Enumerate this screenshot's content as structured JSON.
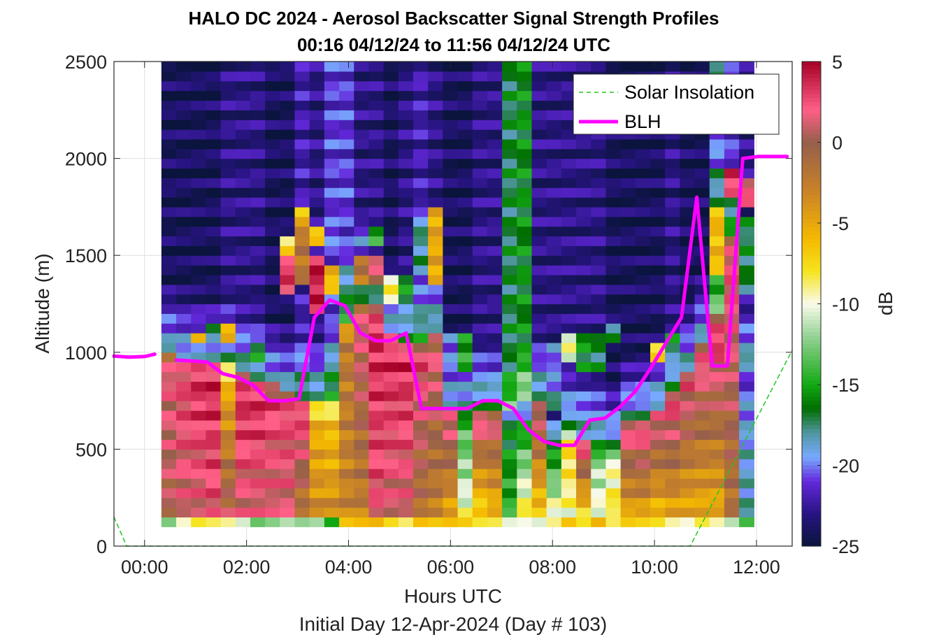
{
  "chart_data": {
    "type": "heatmap",
    "title": "HALO DC 2024 - Aerosol Backscatter Signal Strength Profiles",
    "subtitle": "00:16 04/12/24 to 11:56 04/12/24  UTC",
    "xlabel": "Hours UTC",
    "xlabel2": "Initial Day 12-Apr-2024 (Day # 103)",
    "ylabel": "Altitude (m)",
    "colorbar_label": "dB",
    "xlim": [
      -0.6,
      12.7
    ],
    "ylim": [
      0,
      2500
    ],
    "clim": [
      -25,
      5
    ],
    "x_ticks": [
      0,
      2,
      4,
      6,
      8,
      10,
      12
    ],
    "x_tick_labels": [
      "00:00",
      "02:00",
      "04:00",
      "06:00",
      "08:00",
      "10:00",
      "12:00"
    ],
    "y_ticks": [
      0,
      500,
      1000,
      1500,
      2000,
      2500
    ],
    "y_tick_labels": [
      "0",
      "500",
      "1000",
      "1500",
      "2000",
      "2500"
    ],
    "colorbar_ticks": [
      5,
      0,
      -5,
      -10,
      -15,
      -20,
      -25
    ],
    "colorbar_tick_labels": [
      "5",
      "0",
      "-5",
      "-10",
      "-15",
      "-20",
      "-25"
    ],
    "grid": true,
    "legend_position": "top-right",
    "heatmap": {
      "x_start": 0.33,
      "x_end": 11.95,
      "y_start": 100,
      "y_end": 2500,
      "y_bin": 50,
      "columns": [
        {
          "lowest": -14,
          "surface": 0,
          "peak": 2,
          "aerosol_top": 1000,
          "upper": -24,
          "plumes": []
        },
        {
          "lowest": -11,
          "surface": 1,
          "peak": 3,
          "aerosol_top": 970,
          "upper": -24,
          "plumes": [
            {
              "y": 1000,
              "h": 60,
              "v": -20
            }
          ]
        },
        {
          "lowest": -9,
          "surface": 1,
          "peak": 4,
          "aerosol_top": 970,
          "upper": -24,
          "plumes": [
            {
              "y": 1050,
              "h": 60,
              "v": -7
            }
          ]
        },
        {
          "lowest": -9,
          "surface": 2,
          "peak": 4,
          "aerosol_top": 960,
          "upper": -24,
          "plumes": [
            {
              "y": 1100,
              "h": 60,
              "v": -16
            }
          ]
        },
        {
          "lowest": -9,
          "surface": 1,
          "peak": -6,
          "aerosol_top": 930,
          "upper": -23,
          "plumes": [
            {
              "y": 1050,
              "h": 100,
              "v": -6
            }
          ]
        },
        {
          "lowest": -10,
          "surface": 1,
          "peak": 4,
          "aerosol_top": 880,
          "upper": -23,
          "plumes": []
        },
        {
          "lowest": -12,
          "surface": 1,
          "peak": 4,
          "aerosol_top": 860,
          "upper": -23,
          "plumes": [
            {
              "y": 950,
              "h": 100,
              "v": -16
            }
          ]
        },
        {
          "lowest": -11,
          "surface": 1,
          "peak": 3,
          "aerosol_top": 830,
          "upper": -24,
          "plumes": []
        },
        {
          "lowest": -10,
          "surface": 1,
          "peak": 3,
          "aerosol_top": 790,
          "upper": -24,
          "plumes": [
            {
              "y": 1300,
              "h": 250,
              "v": 3
            },
            {
              "y": 1500,
              "h": 100,
              "v": -8
            }
          ]
        },
        {
          "lowest": -11,
          "surface": -3,
          "peak": 4,
          "aerosol_top": 740,
          "upper": -22,
          "plumes": [
            {
              "y": 1350,
              "h": 350,
              "v": -2
            },
            {
              "y": 1650,
              "h": 100,
              "v": -6
            }
          ]
        },
        {
          "lowest": -11,
          "surface": -3,
          "peak": -6,
          "aerosol_top": 740,
          "upper": -23,
          "plumes": [
            {
              "y": 1200,
              "h": 300,
              "v": 4
            },
            {
              "y": 1550,
              "h": 100,
              "v": -6
            }
          ]
        },
        {
          "lowest": -15,
          "surface": -3,
          "peak": -7,
          "aerosol_top": 760,
          "upper": -21,
          "plumes": [
            {
              "y": 1300,
              "h": 150,
              "v": -6
            },
            {
              "y": 1550,
              "h": 100,
              "v": -20
            }
          ]
        },
        {
          "lowest": -7,
          "surface": -3,
          "peak": -2,
          "aerosol_top": 1170,
          "upper": -21,
          "plumes": []
        },
        {
          "lowest": -7,
          "surface": -3,
          "peak": 2,
          "aerosol_top": 1270,
          "upper": -23,
          "plumes": [
            {
              "y": 1350,
              "h": 150,
              "v": -2
            },
            {
              "y": 1550,
              "h": 100,
              "v": -20
            }
          ]
        },
        {
          "lowest": -7,
          "surface": 2,
          "peak": 4,
          "aerosol_top": 1240,
          "upper": -23,
          "plumes": [
            {
              "y": 1350,
              "h": 150,
              "v": 1
            },
            {
              "y": 1550,
              "h": 80,
              "v": -15
            }
          ]
        },
        {
          "lowest": -9,
          "surface": 1,
          "peak": 4,
          "aerosol_top": 1100,
          "upper": -24,
          "plumes": [
            {
              "y": 1250,
              "h": 150,
              "v": -9
            }
          ]
        },
        {
          "lowest": -10,
          "surface": 1,
          "peak": 4,
          "aerosol_top": 1060,
          "upper": -23,
          "plumes": [
            {
              "y": 1250,
              "h": 150,
              "v": -16
            }
          ]
        },
        {
          "lowest": -7,
          "surface": -2,
          "peak": 3,
          "aerosol_top": 1060,
          "upper": -22,
          "plumes": [
            {
              "y": 1400,
              "h": 300,
              "v": -18
            }
          ]
        },
        {
          "lowest": -7,
          "surface": -3,
          "peak": 2,
          "aerosol_top": 1100,
          "upper": -23,
          "plumes": [
            {
              "y": 1350,
              "h": 400,
              "v": -5
            }
          ]
        },
        {
          "lowest": -6,
          "surface": -6,
          "peak": 3,
          "aerosol_top": 720,
          "upper": -24,
          "plumes": [
            {
              "y": 900,
              "h": 200,
              "v": -20
            }
          ]
        },
        {
          "lowest": -6,
          "surface": -9,
          "peak": -15,
          "aerosol_top": 720,
          "upper": -24,
          "plumes": [
            {
              "y": 900,
              "h": 200,
              "v": -15
            }
          ]
        },
        {
          "lowest": -7,
          "surface": -9,
          "peak": 3,
          "aerosol_top": 710,
          "upper": -23,
          "plumes": []
        },
        {
          "lowest": -7,
          "surface": -7,
          "peak": 2,
          "aerosol_top": 700,
          "upper": -23,
          "plumes": []
        },
        {
          "lowest": -9,
          "surface": -14,
          "peak": -17,
          "aerosol_top": 710,
          "upper": -19,
          "plumes": [
            {
              "y": 1000,
              "h": 2000,
              "v": -17
            }
          ]
        },
        {
          "lowest": -9,
          "surface": -7,
          "peak": -18,
          "aerosol_top": 750,
          "upper": -17,
          "plumes": [
            {
              "y": 1000,
              "h": 2000,
              "v": -16
            }
          ]
        },
        {
          "lowest": -10,
          "surface": -8,
          "peak": 2,
          "aerosol_top": 750,
          "upper": -23,
          "plumes": []
        },
        {
          "lowest": -9,
          "surface": -8,
          "peak": -20,
          "aerosol_top": 690,
          "upper": -23,
          "plumes": [
            {
              "y": 850,
              "h": 200,
              "v": -20
            }
          ]
        },
        {
          "lowest": -7,
          "surface": -10,
          "peak": -7,
          "aerosol_top": 580,
          "upper": -23,
          "plumes": [
            {
              "y": 950,
              "h": 150,
              "v": -10
            }
          ]
        },
        {
          "lowest": -9,
          "surface": -9,
          "peak": 3,
          "aerosol_top": 540,
          "upper": -23,
          "plumes": [
            {
              "y": 900,
              "h": 200,
              "v": -16
            }
          ]
        },
        {
          "lowest": -7,
          "surface": -9,
          "peak": -13,
          "aerosol_top": 520,
          "upper": -23,
          "plumes": [
            {
              "y": 900,
              "h": 200,
              "v": -17
            }
          ]
        },
        {
          "lowest": -10,
          "surface": -7,
          "peak": -11,
          "aerosol_top": 520,
          "upper": -24,
          "plumes": [
            {
              "y": 1050,
              "h": 100,
              "v": -17
            }
          ]
        },
        {
          "lowest": -8,
          "surface": -6,
          "peak": 3,
          "aerosol_top": 650,
          "upper": -24,
          "plumes": []
        },
        {
          "lowest": -8,
          "surface": -6,
          "peak": 4,
          "aerosol_top": 660,
          "upper": -24,
          "plumes": []
        },
        {
          "lowest": -8,
          "surface": -7,
          "peak": 3,
          "aerosol_top": 720,
          "upper": -24,
          "plumes": [
            {
              "y": 950,
              "h": 100,
              "v": -7
            }
          ]
        },
        {
          "lowest": -9,
          "surface": -6,
          "peak": 4,
          "aerosol_top": 800,
          "upper": -23,
          "plumes": [
            {
              "y": 1000,
              "h": 80,
              "v": -16
            }
          ]
        },
        {
          "lowest": -9,
          "surface": -6,
          "peak": 3,
          "aerosol_top": 920,
          "upper": -24,
          "plumes": []
        },
        {
          "lowest": -7,
          "surface": -6,
          "peak": 3,
          "aerosol_top": 1050,
          "upper": -24,
          "plumes": []
        },
        {
          "lowest": -8,
          "surface": -6,
          "peak": 4,
          "aerosol_top": 1180,
          "upper": -18,
          "plumes": [
            {
              "y": 1400,
              "h": 350,
              "v": -6
            },
            {
              "y": 1950,
              "h": 250,
              "v": -20
            }
          ]
        },
        {
          "lowest": -10,
          "surface": -2,
          "peak": 3,
          "aerosol_top": 1600,
          "upper": -21,
          "plumes": [
            {
              "y": 1800,
              "h": 150,
              "v": 3
            }
          ]
        },
        {
          "lowest": -13,
          "surface": -18,
          "peak": -20,
          "aerosol_top": 900,
          "upper": -23,
          "plumes": [
            {
              "y": 1300,
              "h": 400,
              "v": -17
            },
            {
              "y": 1750,
              "h": 150,
              "v": 2
            }
          ]
        }
      ]
    },
    "series": [
      {
        "name": "Solar Insolation",
        "color": "#1ec81e",
        "style": "dashed",
        "x": [
          -0.6,
          -0.35,
          10.7,
          12.7
        ],
        "y": [
          150,
          0,
          0,
          1010
        ]
      },
      {
        "name": "BLH",
        "color": "#ff00ff",
        "style": "solid",
        "x": [
          -0.6,
          -0.3,
          0.0,
          0.2
        ],
        "y": [
          980,
          975,
          978,
          990
        ]
      },
      {
        "name": "BLH",
        "color": "#ff00ff",
        "style": "solid",
        "x": [
          0.62,
          0.93,
          1.23,
          1.53,
          1.83,
          2.13,
          2.43,
          2.73,
          3.03,
          3.33,
          3.63,
          3.93,
          4.23,
          4.53,
          4.83,
          5.13,
          5.43,
          5.73,
          6.03,
          6.33,
          6.63,
          6.93,
          7.23,
          7.53,
          7.83,
          8.13,
          8.43,
          8.73,
          9.03,
          9.33,
          9.63,
          9.93,
          10.23,
          10.53,
          10.83,
          11.13,
          11.43,
          11.73,
          12.03,
          12.33,
          12.6
        ],
        "y": [
          960,
          955,
          950,
          890,
          870,
          830,
          750,
          750,
          760,
          1180,
          1270,
          1240,
          1100,
          1060,
          1060,
          1100,
          710,
          710,
          710,
          710,
          750,
          750,
          710,
          600,
          540,
          520,
          520,
          650,
          660,
          720,
          800,
          920,
          1050,
          1180,
          1800,
          930,
          930,
          2000,
          2010,
          2010,
          2010
        ]
      }
    ],
    "legend": [
      {
        "label": "Solar Insolation",
        "color": "#1ec81e",
        "style": "dashed"
      },
      {
        "label": "BLH",
        "color": "#ff00ff",
        "style": "solid"
      }
    ]
  }
}
